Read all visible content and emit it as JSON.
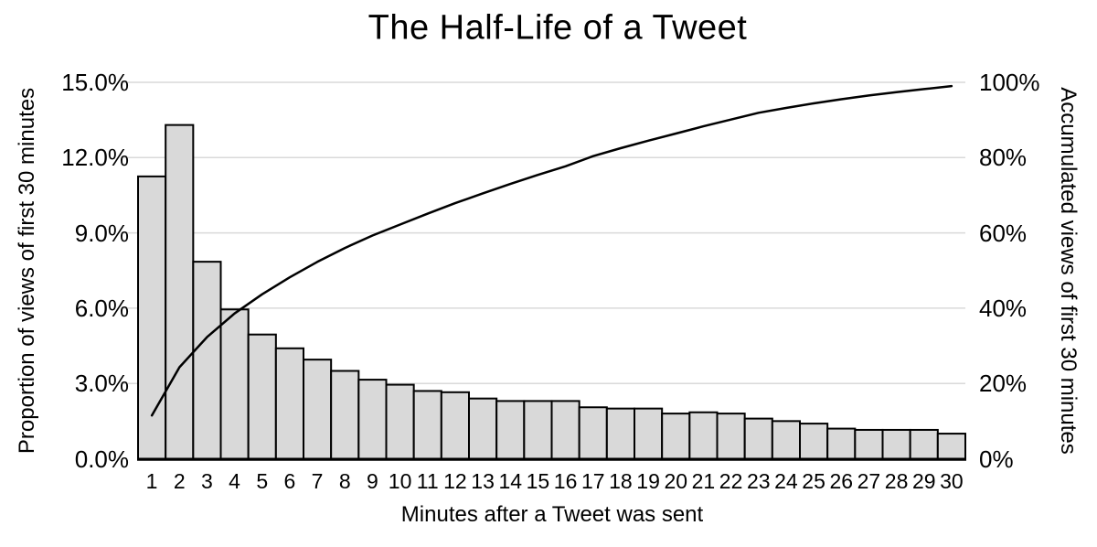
{
  "title": "The Half-Life of a Tweet",
  "chart_data": {
    "type": "bar",
    "subtype": "combo-bar-line-histogram",
    "title": "The Half-Life of a Tweet",
    "xlabel": "Minutes after a Tweet was sent",
    "categories": [
      1,
      2,
      3,
      4,
      5,
      6,
      7,
      8,
      9,
      10,
      11,
      12,
      13,
      14,
      15,
      16,
      17,
      18,
      19,
      20,
      21,
      22,
      23,
      24,
      25,
      26,
      27,
      28,
      29,
      30
    ],
    "series": [
      {
        "name": "Proportion of views of first 30 minutes",
        "type": "bar",
        "axis": "left",
        "unit": "%",
        "values": [
          11.25,
          13.3,
          7.85,
          5.95,
          4.95,
          4.4,
          3.95,
          3.5,
          3.15,
          2.95,
          2.7,
          2.65,
          2.4,
          2.3,
          2.3,
          2.3,
          2.05,
          2.0,
          2.0,
          1.8,
          1.85,
          1.8,
          1.6,
          1.5,
          1.4,
          1.2,
          1.15,
          1.15,
          1.15,
          1.0
        ]
      },
      {
        "name": "Accumulated views of first 30 minutes",
        "type": "line",
        "axis": "right",
        "unit": "%",
        "values": [
          11.5,
          24.3,
          32.3,
          38.6,
          43.7,
          48.2,
          52.3,
          56.0,
          59.3,
          62.2,
          65.1,
          67.9,
          70.5,
          73.0,
          75.4,
          77.7,
          80.4,
          82.5,
          84.5,
          86.4,
          88.3,
          90.1,
          91.9,
          93.2,
          94.4,
          95.5,
          96.5,
          97.4,
          98.2,
          99.0
        ]
      }
    ],
    "left_axis": {
      "label": "Proportion of views of first 30 minutes",
      "min": 0,
      "max": 15,
      "tick_values": [
        15,
        12,
        9,
        6,
        3,
        0
      ],
      "tick_labels": [
        "15.0%",
        "12.0%",
        "9.0%",
        "6.0%",
        "3.0%",
        "0.0%"
      ]
    },
    "right_axis": {
      "label": "Accumulated views of first 30 minutes",
      "min": 0,
      "max": 100,
      "tick_values": [
        100,
        80,
        60,
        40,
        20,
        0
      ],
      "tick_labels": [
        "100%",
        "80%",
        "60%",
        "40%",
        "20%",
        "0%"
      ]
    },
    "grid": true,
    "legend": "none",
    "colors": {
      "bar_fill": "#d9d9d9",
      "bar_stroke": "#000000",
      "line": "#000000",
      "gridline": "#d9d9d9",
      "axis_line": "#000000",
      "text": "#000000",
      "background": "#ffffff"
    }
  }
}
